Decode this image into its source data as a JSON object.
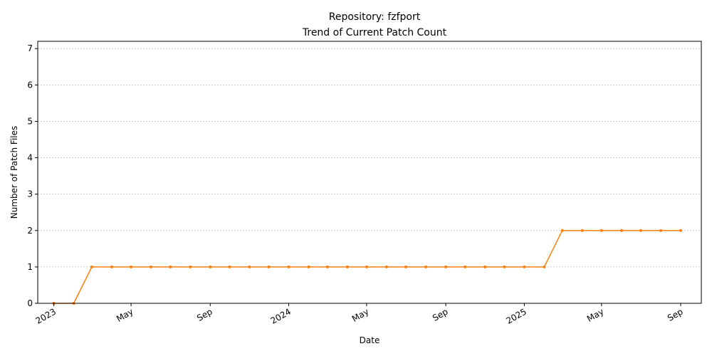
{
  "chart_data": {
    "type": "line",
    "title": "Repository: fzfport",
    "subtitle": "Trend of Current Patch Count",
    "xlabel": "Date",
    "ylabel": "Number of Patch Files",
    "ylim": [
      0,
      7.2
    ],
    "xlim": [
      "2022-12-07",
      "2025-10-03"
    ],
    "yticks": [
      0,
      1,
      2,
      3,
      4,
      5,
      6,
      7
    ],
    "xticks": [
      {
        "date": "2023-01-01",
        "label": "2023"
      },
      {
        "date": "2023-05-01",
        "label": "May"
      },
      {
        "date": "2023-09-01",
        "label": "Sep"
      },
      {
        "date": "2024-01-01",
        "label": "2024"
      },
      {
        "date": "2024-05-01",
        "label": "May"
      },
      {
        "date": "2024-09-01",
        "label": "Sep"
      },
      {
        "date": "2025-01-01",
        "label": "2025"
      },
      {
        "date": "2025-05-01",
        "label": "May"
      },
      {
        "date": "2025-09-01",
        "label": "Sep"
      }
    ],
    "grid": "y",
    "line_color": "#ff7f0e",
    "series": [
      {
        "x": [
          "2023-01-01",
          "2023-02-01",
          "2023-03-01",
          "2023-04-01",
          "2023-05-01",
          "2023-06-01",
          "2023-07-01",
          "2023-08-01",
          "2023-09-01",
          "2023-10-01",
          "2023-11-01",
          "2023-12-01",
          "2024-01-01",
          "2024-02-01",
          "2024-03-01",
          "2024-04-01",
          "2024-05-01",
          "2024-06-01",
          "2024-07-01",
          "2024-08-01",
          "2024-09-01",
          "2024-10-01",
          "2024-11-01",
          "2024-12-01",
          "2025-01-01",
          "2025-02-01",
          "2025-03-01",
          "2025-04-01",
          "2025-05-01",
          "2025-06-01",
          "2025-07-01",
          "2025-08-01",
          "2025-09-01"
        ],
        "values": [
          0,
          0,
          1,
          1,
          1,
          1,
          1,
          1,
          1,
          1,
          1,
          1,
          1,
          1,
          1,
          1,
          1,
          1,
          1,
          1,
          1,
          1,
          1,
          1,
          1,
          1,
          2,
          2,
          2,
          2,
          2,
          2,
          2
        ]
      }
    ]
  }
}
